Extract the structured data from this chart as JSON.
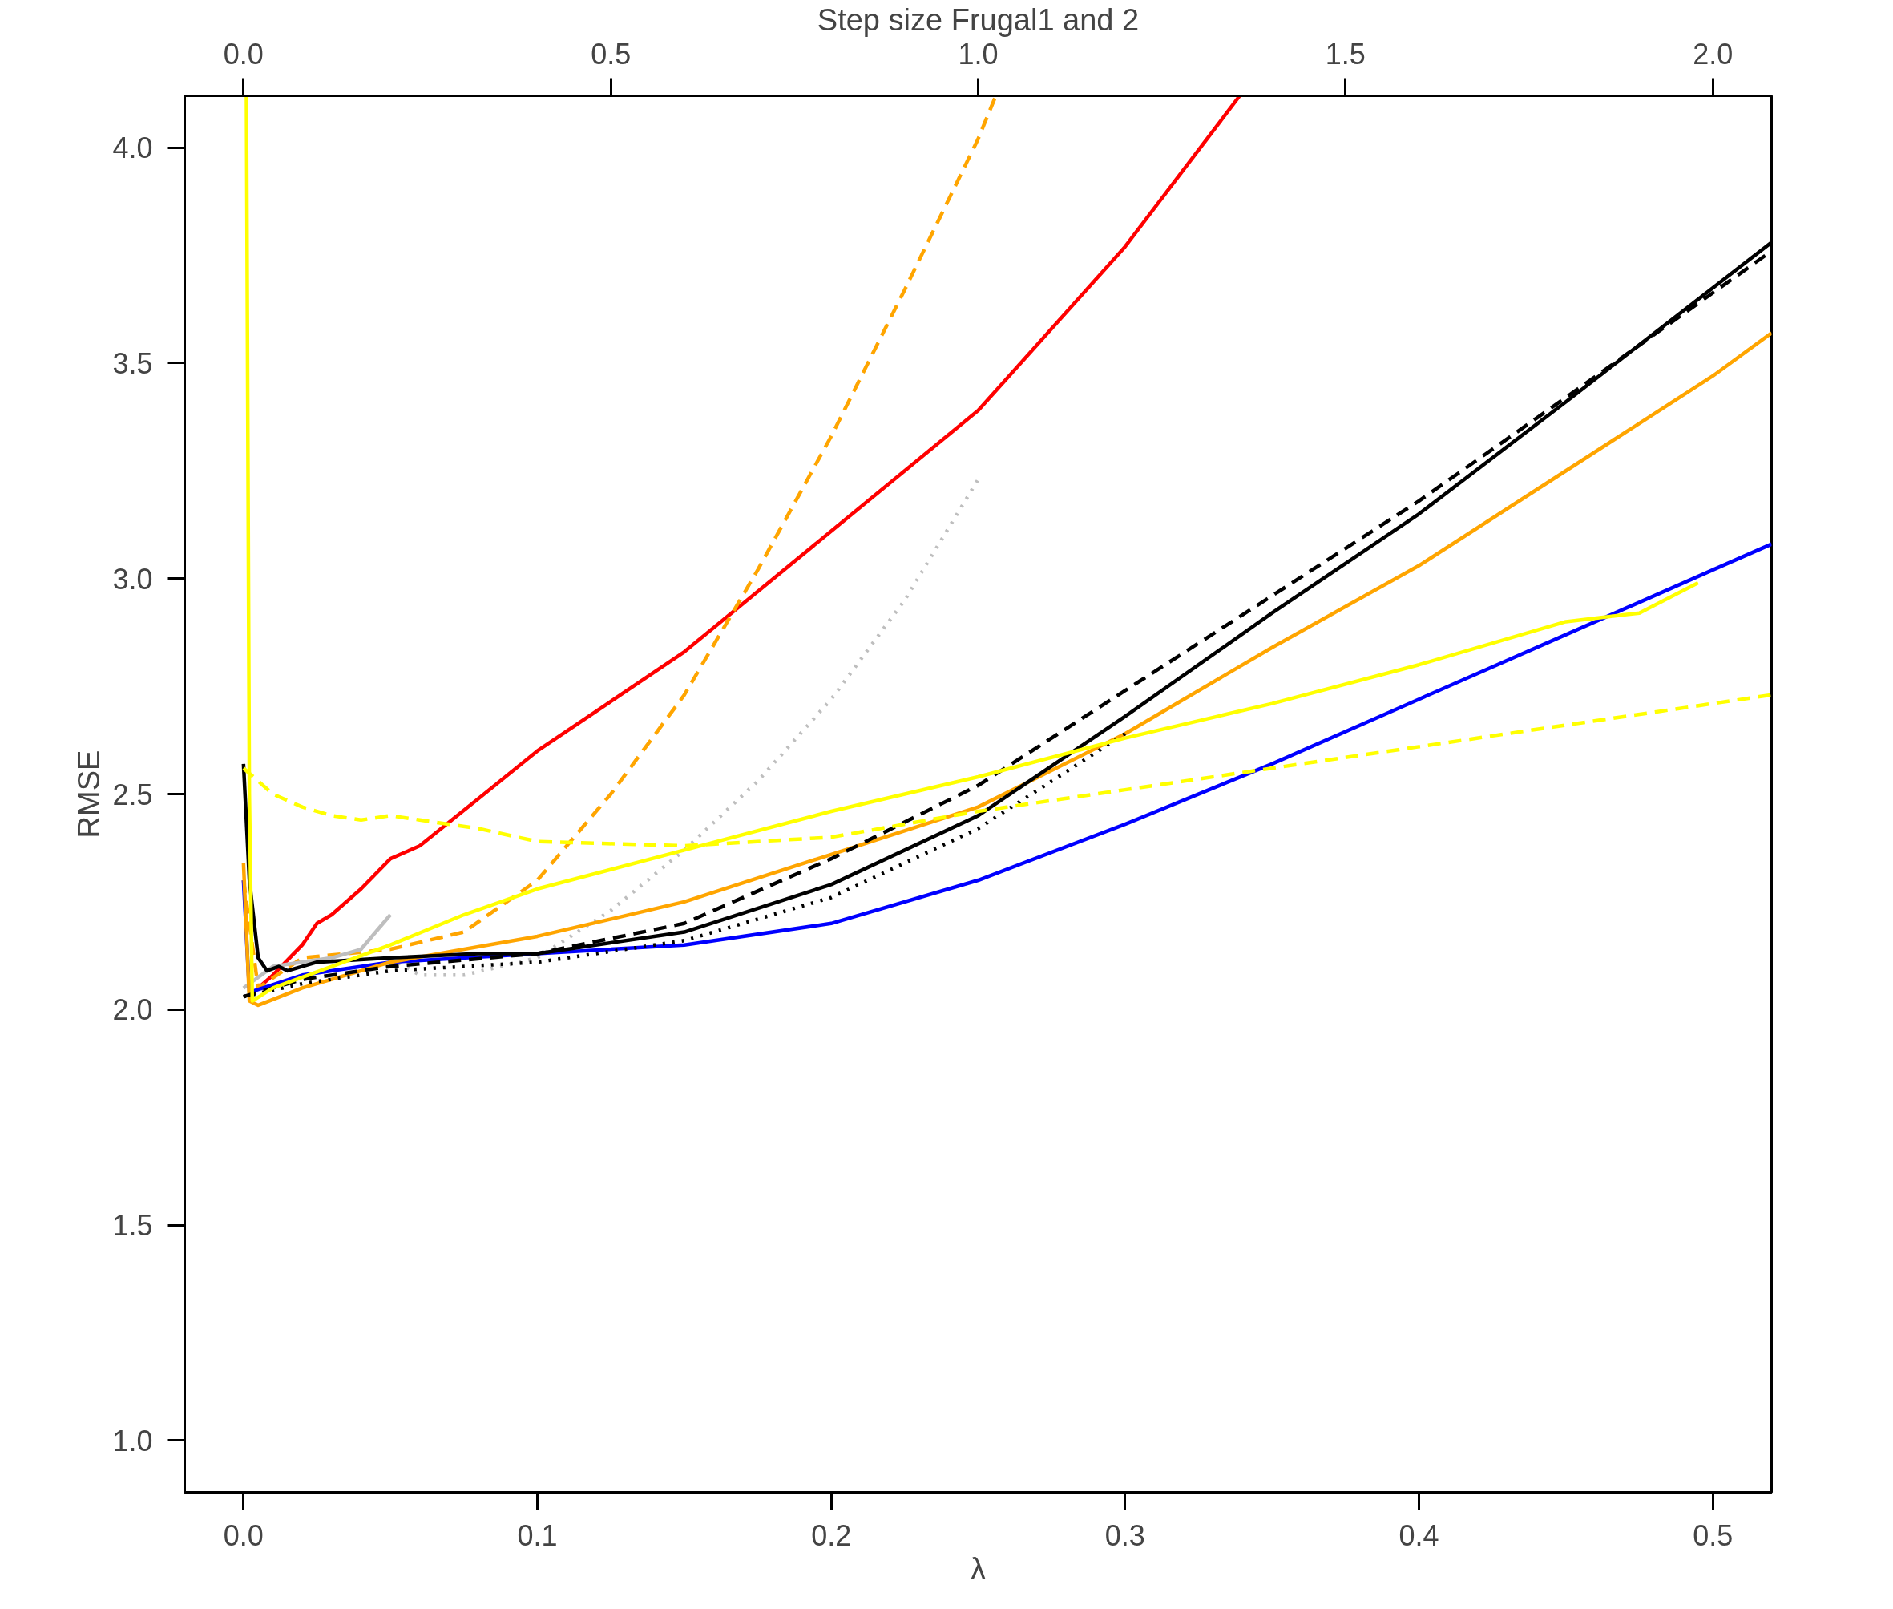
{
  "chart_data": {
    "type": "line",
    "xlabel": "λ",
    "ylabel": "RMSE",
    "x2label": "Step size Frugal1 and 2",
    "xlim": [
      -0.02,
      0.52
    ],
    "xticks": [
      {
        "value": 0,
        "label": "0.0"
      },
      {
        "value": 0.1,
        "label": "0.1"
      },
      {
        "value": 0.2,
        "label": "0.2"
      },
      {
        "value": 0.3,
        "label": "0.3"
      },
      {
        "value": 0.4,
        "label": "0.4"
      },
      {
        "value": 0.5,
        "label": "0.5"
      }
    ],
    "x2lim": [
      -0.08,
      2.08
    ],
    "x2ticks": [
      {
        "value": 0,
        "label": "0.0"
      },
      {
        "value": 0.5,
        "label": "0.5"
      },
      {
        "value": 1,
        "label": "1.0"
      },
      {
        "value": 1.5,
        "label": "1.5"
      },
      {
        "value": 2,
        "label": "2.0"
      }
    ],
    "ylim": [
      0.88,
      4.12
    ],
    "yticks": [
      {
        "value": 1,
        "label": "1.0"
      },
      {
        "value": 1.5,
        "label": "1.5"
      },
      {
        "value": 2,
        "label": "2.0"
      },
      {
        "value": 2.5,
        "label": "2.5"
      },
      {
        "value": 3,
        "label": "3.0"
      },
      {
        "value": 3.5,
        "label": "3.5"
      },
      {
        "value": 4,
        "label": "4.0"
      }
    ],
    "grid": false,
    "marker": "none",
    "series": [
      {
        "color": "#ff0000",
        "line_style": "solid",
        "x": [
          0.005,
          0.01,
          0.02,
          0.025,
          0.03,
          0.04,
          0.05,
          0.06,
          0.08,
          0.1,
          0.15,
          0.2,
          0.25,
          0.3,
          0.339
        ],
        "values": [
          2.05,
          2.08,
          2.15,
          2.2,
          2.22,
          2.28,
          2.35,
          2.38,
          2.49,
          2.6,
          2.83,
          3.11,
          3.39,
          3.77,
          4.12
        ]
      },
      {
        "color": "#ffa500",
        "line_style": "dashed",
        "x": [
          0,
          0.005,
          0.02,
          0.05,
          0.075,
          0.1,
          0.125,
          0.15,
          0.175,
          0.2,
          0.225,
          0.25,
          0.256
        ],
        "values": [
          2.3,
          2.05,
          2.12,
          2.14,
          2.18,
          2.3,
          2.5,
          2.73,
          3.02,
          3.33,
          3.67,
          4.02,
          4.12
        ]
      },
      {
        "color": "#bebebe",
        "line_style": "dotted",
        "x": [
          0.05,
          0.06,
          0.075,
          0.1,
          0.125,
          0.15,
          0.175,
          0.2,
          0.225,
          0.25
        ],
        "values": [
          2.12,
          2.08,
          2.08,
          2.12,
          2.23,
          2.37,
          2.53,
          2.72,
          2.95,
          3.23
        ]
      },
      {
        "color": "#bebebe",
        "line_style": "solid",
        "x": [
          0,
          0.01,
          0.03,
          0.04,
          0.05
        ],
        "values": [
          2.05,
          2.1,
          2.12,
          2.14,
          2.22
        ]
      },
      {
        "color": "#0000ff",
        "line_style": "solid",
        "x": [
          0,
          0.002,
          0.02,
          0.05,
          0.1,
          0.15,
          0.2,
          0.25,
          0.3,
          0.35,
          0.4,
          0.45,
          0.5,
          0.52
        ],
        "values": [
          2.3,
          2.04,
          2.08,
          2.11,
          2.13,
          2.15,
          2.2,
          2.3,
          2.43,
          2.57,
          2.72,
          2.87,
          3.02,
          3.08
        ]
      },
      {
        "color": "#ffa500",
        "line_style": "solid",
        "x": [
          0,
          0.002,
          0.005,
          0.02,
          0.05,
          0.1,
          0.15,
          0.2,
          0.25,
          0.3,
          0.35,
          0.4,
          0.45,
          0.5,
          0.52
        ],
        "values": [
          2.34,
          2.02,
          2.01,
          2.05,
          2.11,
          2.17,
          2.25,
          2.36,
          2.47,
          2.64,
          2.84,
          3.03,
          3.25,
          3.47,
          3.57
        ]
      },
      {
        "color": "#000000",
        "line_style": "dotted",
        "x": [
          0,
          0.02,
          0.05,
          0.1,
          0.15,
          0.2,
          0.25,
          0.3
        ],
        "values": [
          2.03,
          2.06,
          2.09,
          2.11,
          2.16,
          2.26,
          2.42,
          2.64
        ]
      },
      {
        "color": "#000000",
        "line_style": "dashed",
        "x": [
          0,
          0.02,
          0.05,
          0.1,
          0.15,
          0.2,
          0.25,
          0.3,
          0.35,
          0.4,
          0.45,
          0.52
        ],
        "values": [
          2.03,
          2.07,
          2.1,
          2.13,
          2.2,
          2.35,
          2.52,
          2.74,
          2.96,
          3.18,
          3.42,
          3.76
        ]
      },
      {
        "color": "#000000",
        "line_style": "solid",
        "x": [
          0,
          0.002,
          0.005,
          0.008,
          0.012,
          0.015,
          0.025,
          0.05,
          0.08,
          0.1,
          0.15,
          0.2,
          0.25,
          0.3,
          0.35,
          0.4,
          0.45,
          0.52
        ],
        "values": [
          2.57,
          2.3,
          2.12,
          2.09,
          2.1,
          2.09,
          2.11,
          2.12,
          2.13,
          2.13,
          2.18,
          2.29,
          2.45,
          2.68,
          2.92,
          3.15,
          3.41,
          3.78
        ]
      },
      {
        "color": "#ffff00",
        "line_style": "solid",
        "x": [
          0.001,
          0.002,
          0.003,
          0.01,
          0.03,
          0.05,
          0.075,
          0.1,
          0.15,
          0.2,
          0.25,
          0.3,
          0.35,
          0.4,
          0.45,
          0.475,
          0.495
        ],
        "values": [
          4.12,
          2.5,
          2.02,
          2.05,
          2.1,
          2.15,
          2.22,
          2.28,
          2.37,
          2.46,
          2.54,
          2.63,
          2.71,
          2.8,
          2.9,
          2.92,
          2.99
        ]
      },
      {
        "color": "#ffff00",
        "line_style": "dashed",
        "x": [
          0,
          0.01,
          0.02,
          0.03,
          0.04,
          0.05,
          0.06,
          0.08,
          0.1,
          0.15,
          0.2,
          0.25,
          0.3,
          0.35,
          0.4,
          0.45,
          0.52
        ],
        "values": [
          2.56,
          2.5,
          2.47,
          2.45,
          2.44,
          2.45,
          2.44,
          2.42,
          2.39,
          2.38,
          2.4,
          2.46,
          2.51,
          2.56,
          2.61,
          2.66,
          2.73
        ]
      }
    ]
  }
}
